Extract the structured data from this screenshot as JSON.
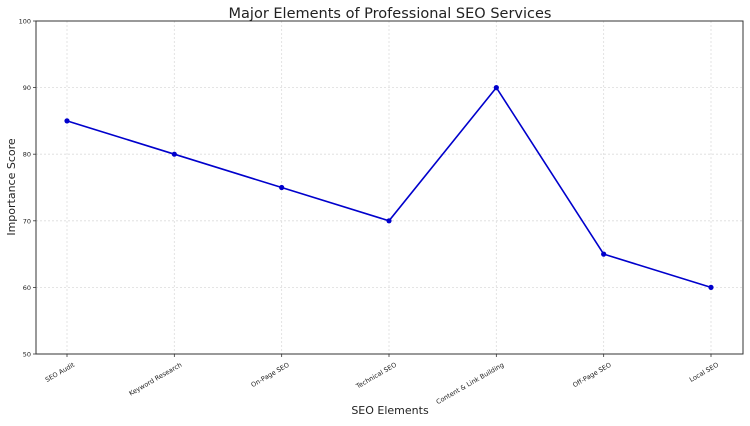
{
  "chart_data": {
    "type": "line",
    "title": "Major Elements of Professional SEO Services",
    "xlabel": "SEO Elements",
    "ylabel": "Importance Score",
    "categories": [
      "SEO Audit",
      "Keyword Research",
      "On-Page SEO",
      "Technical SEO",
      "Content & Link Building",
      "Off-Page SEO",
      "Local SEO"
    ],
    "series": [
      {
        "name": "Importance Score",
        "values": [
          85,
          80,
          75,
          70,
          90,
          65,
          60
        ],
        "color": "#0000cc",
        "marker": "circle"
      }
    ],
    "ylim": [
      50,
      100
    ],
    "yticks": [
      50,
      60,
      70,
      80,
      90,
      100
    ],
    "grid": true,
    "legend": null
  }
}
